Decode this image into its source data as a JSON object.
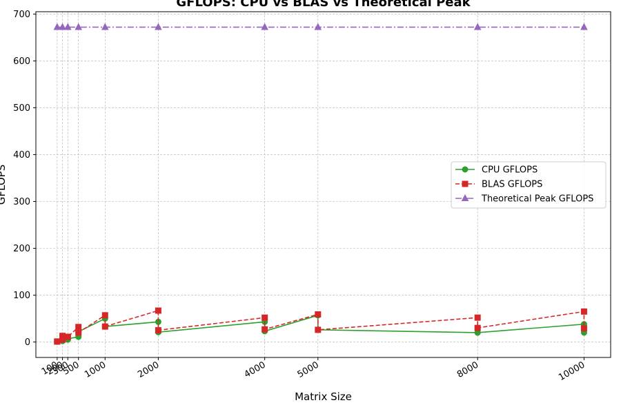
{
  "chart_data": {
    "type": "line",
    "title": "GFLOPS: CPU vs BLAS vs Theoretical Peak",
    "xlabel": "Matrix Size",
    "ylabel": "GFLOPS",
    "xlim": [
      -300,
      10500
    ],
    "ylim": [
      -33,
      705
    ],
    "x_ticks": [
      100,
      200,
      300,
      500,
      1000,
      2000,
      4000,
      5000,
      8000,
      10000
    ],
    "x_tick_labels": [
      "100",
      "200",
      "300",
      "500",
      "1000",
      "2000",
      "4000",
      "5000",
      "8000",
      "10000"
    ],
    "y_ticks": [
      0,
      100,
      200,
      300,
      400,
      500,
      600,
      700
    ],
    "y_tick_labels": [
      "0",
      "100",
      "200",
      "300",
      "400",
      "500",
      "600",
      "700"
    ],
    "grid": true,
    "legend_position": "center-right",
    "series": [
      {
        "name": "CPU GFLOPS",
        "color": "#2ca02c",
        "linestyle": "solid",
        "marker": "circle",
        "x": [
          100,
          100,
          200,
          200,
          300,
          300,
          500,
          500,
          1000,
          1000,
          2000,
          2000,
          4000,
          4000,
          5000,
          5000,
          8000,
          8000,
          10000,
          10000
        ],
        "y": [
          0.5,
          1,
          2,
          4,
          5,
          7,
          11,
          22,
          50,
          33,
          43,
          21,
          43,
          23,
          57,
          26,
          20,
          20,
          38,
          20
        ]
      },
      {
        "name": "BLAS GFLOPS",
        "color": "#d62728",
        "linestyle": "dashed",
        "marker": "square",
        "x": [
          100,
          100,
          200,
          200,
          300,
          300,
          500,
          500,
          1000,
          1000,
          2000,
          2000,
          4000,
          4000,
          5000,
          5000,
          8000,
          8000,
          10000,
          10000
        ],
        "y": [
          1,
          1,
          13,
          5,
          11,
          11,
          32,
          20,
          57,
          33,
          67,
          25,
          52,
          27,
          59,
          26,
          52,
          30,
          65,
          29
        ]
      },
      {
        "name": "Theoretical Peak GFLOPS",
        "color": "#9467bd",
        "linestyle": "dashdot",
        "marker": "triangle",
        "x": [
          100,
          200,
          300,
          500,
          1000,
          2000,
          4000,
          5000,
          8000,
          10000
        ],
        "y": [
          672,
          672,
          672,
          672,
          672,
          672,
          672,
          672,
          672,
          672
        ]
      }
    ]
  }
}
